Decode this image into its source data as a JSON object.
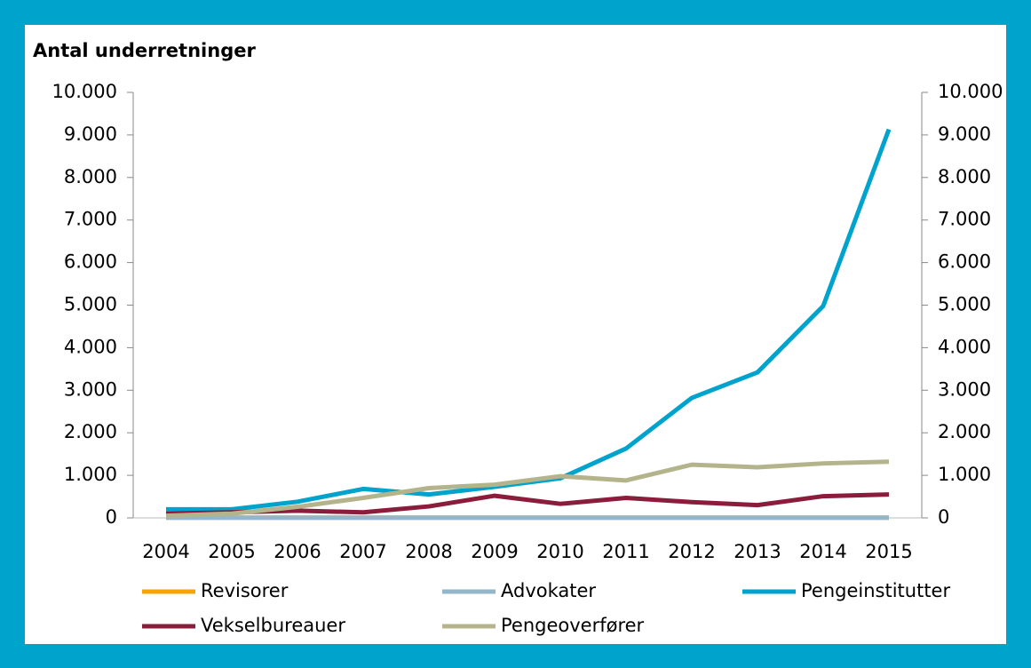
{
  "chart_data": {
    "type": "line",
    "title": "Antal underretninger",
    "categories": [
      "2004",
      "2005",
      "2006",
      "2007",
      "2008",
      "2009",
      "2010",
      "2011",
      "2012",
      "2013",
      "2014",
      "2015"
    ],
    "series": [
      {
        "name": "Revisorer",
        "color": "#f5a400",
        "values": [
          5,
          5,
          5,
          5,
          5,
          5,
          5,
          5,
          5,
          5,
          5,
          5
        ]
      },
      {
        "name": "Advokater",
        "color": "#94b6c9",
        "values": [
          5,
          5,
          5,
          5,
          5,
          5,
          5,
          5,
          5,
          5,
          5,
          5
        ]
      },
      {
        "name": "Pengeinstitutter",
        "color": "#00a3cc",
        "values": [
          200,
          200,
          380,
          680,
          550,
          730,
          930,
          1630,
          2820,
          3420,
          4980,
          9130
        ]
      },
      {
        "name": "Vekselbureauer",
        "color": "#8c1c3c",
        "values": [
          100,
          130,
          170,
          130,
          270,
          520,
          330,
          470,
          370,
          300,
          510,
          550
        ]
      },
      {
        "name": "Pengeoverfører",
        "color": "#b4b48c",
        "values": [
          50,
          100,
          260,
          470,
          700,
          780,
          980,
          880,
          1250,
          1190,
          1280,
          1320
        ]
      }
    ],
    "ylim": [
      0,
      10000
    ],
    "yticks": [
      0,
      {
        "value": 1000,
        "label": "1.000"
      },
      {
        "value": 2000,
        "label": "2.000"
      },
      {
        "value": 3000,
        "label": "3.000"
      },
      {
        "value": 4000,
        "label": "4.000"
      },
      {
        "value": 5000,
        "label": "5.000"
      },
      {
        "value": 6000,
        "label": "6.000"
      },
      {
        "value": 7000,
        "label": "7.000"
      },
      {
        "value": 8000,
        "label": "8.000"
      },
      {
        "value": 9000,
        "label": "9.000"
      },
      {
        "value": 10000,
        "label": "10.000"
      }
    ],
    "y2lim": [
      0,
      10000
    ],
    "y2ticks": [
      0,
      {
        "value": 1000,
        "label": "1.000"
      },
      {
        "value": 2000,
        "label": "2.000"
      },
      {
        "value": 3000,
        "label": "3.000"
      },
      {
        "value": 4000,
        "label": "4.000"
      },
      {
        "value": 5000,
        "label": "5.000"
      },
      {
        "value": 6000,
        "label": "6.000"
      },
      {
        "value": 7000,
        "label": "7.000"
      },
      {
        "value": 8000,
        "label": "8.000"
      },
      {
        "value": 9000,
        "label": "9.000"
      },
      {
        "value": 10000,
        "label": "10.000"
      }
    ]
  }
}
